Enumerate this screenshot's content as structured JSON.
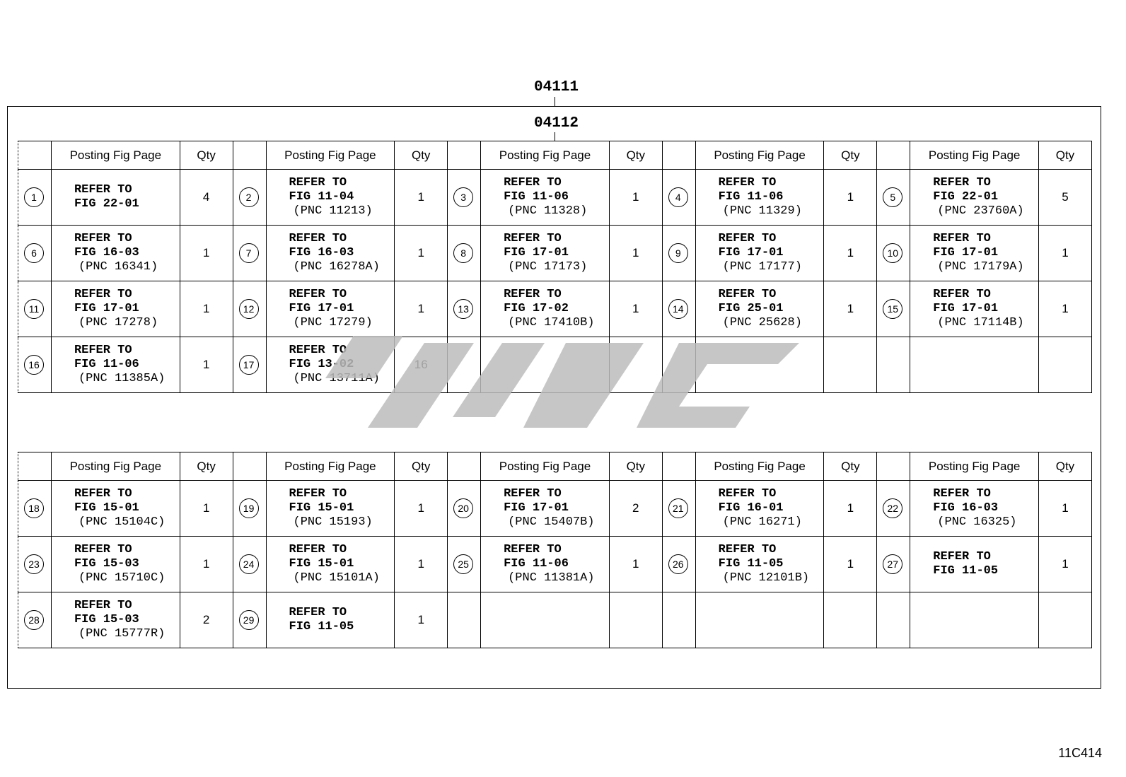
{
  "labels": {
    "top": "04111",
    "inner": "04112"
  },
  "footer_code": "11C414",
  "watermark_text": "",
  "headers": {
    "posting": "Posting Fig Page",
    "qty": "Qty"
  },
  "tables": [
    {
      "rows": [
        [
          {
            "no": "1",
            "lines": [
              "REFER TO",
              "FIG 22-01"
            ],
            "qty": "4"
          },
          {
            "no": "2",
            "lines": [
              "REFER TO",
              "FIG 11-04",
              "(PNC 11213)"
            ],
            "qty": "1"
          },
          {
            "no": "3",
            "lines": [
              "REFER TO",
              "FIG 11-06",
              "(PNC 11328)"
            ],
            "qty": "1"
          },
          {
            "no": "4",
            "lines": [
              "REFER TO",
              "FIG 11-06",
              "(PNC 11329)"
            ],
            "qty": "1"
          },
          {
            "no": "5",
            "lines": [
              "REFER TO",
              "FIG 22-01",
              "(PNC 23760A)"
            ],
            "qty": "5"
          }
        ],
        [
          {
            "no": "6",
            "lines": [
              "REFER TO",
              "FIG 16-03",
              "(PNC 16341)"
            ],
            "qty": "1"
          },
          {
            "no": "7",
            "lines": [
              "REFER TO",
              "FIG 16-03",
              "(PNC 16278A)"
            ],
            "qty": "1"
          },
          {
            "no": "8",
            "lines": [
              "REFER TO",
              "FIG 17-01",
              "(PNC 17173)"
            ],
            "qty": "1"
          },
          {
            "no": "9",
            "lines": [
              "REFER TO",
              "FIG 17-01",
              "(PNC 17177)"
            ],
            "qty": "1"
          },
          {
            "no": "10",
            "lines": [
              "REFER TO",
              "FIG 17-01",
              "(PNC 17179A)"
            ],
            "qty": "1"
          }
        ],
        [
          {
            "no": "11",
            "lines": [
              "REFER TO",
              "FIG 17-01",
              "(PNC 17278)"
            ],
            "qty": "1"
          },
          {
            "no": "12",
            "lines": [
              "REFER TO",
              "FIG 17-01",
              "(PNC 17279)"
            ],
            "qty": "1"
          },
          {
            "no": "13",
            "lines": [
              "REFER TO",
              "FIG 17-02",
              "(PNC 17410B)"
            ],
            "qty": "1"
          },
          {
            "no": "14",
            "lines": [
              "REFER TO",
              "FIG 25-01",
              "(PNC 25628)"
            ],
            "qty": "1"
          },
          {
            "no": "15",
            "lines": [
              "REFER TO",
              "FIG 17-01",
              "(PNC 17114B)"
            ],
            "qty": "1"
          }
        ],
        [
          {
            "no": "16",
            "lines": [
              "REFER TO",
              "FIG 11-06",
              "(PNC 11385A)"
            ],
            "qty": "1"
          },
          {
            "no": "17",
            "lines": [
              "REFER TO",
              "FIG 13-02",
              "(PNC 13711A)"
            ],
            "qty": "16"
          },
          null,
          null,
          null
        ]
      ]
    },
    {
      "rows": [
        [
          {
            "no": "18",
            "lines": [
              "REFER TO",
              "FIG 15-01",
              "(PNC 15104C)"
            ],
            "qty": "1"
          },
          {
            "no": "19",
            "lines": [
              "REFER TO",
              "FIG 15-01",
              "(PNC 15193)"
            ],
            "qty": "1"
          },
          {
            "no": "20",
            "lines": [
              "REFER TO",
              "FIG 17-01",
              "(PNC 15407B)"
            ],
            "qty": "2"
          },
          {
            "no": "21",
            "lines": [
              "REFER TO",
              "FIG 16-01",
              "(PNC 16271)"
            ],
            "qty": "1"
          },
          {
            "no": "22",
            "lines": [
              "REFER TO",
              "FIG 16-03",
              "(PNC 16325)"
            ],
            "qty": "1"
          }
        ],
        [
          {
            "no": "23",
            "lines": [
              "REFER TO",
              "FIG 15-03",
              "(PNC 15710C)"
            ],
            "qty": "1"
          },
          {
            "no": "24",
            "lines": [
              "REFER TO",
              "FIG 15-01",
              "(PNC 15101A)"
            ],
            "qty": "1"
          },
          {
            "no": "25",
            "lines": [
              "REFER TO",
              "FIG 11-06",
              "(PNC 11381A)"
            ],
            "qty": "1"
          },
          {
            "no": "26",
            "lines": [
              "REFER TO",
              "FIG 11-05",
              "(PNC 12101B)"
            ],
            "qty": "1"
          },
          {
            "no": "27",
            "lines": [
              "REFER TO",
              "FIG 11-05"
            ],
            "qty": "1"
          }
        ],
        [
          {
            "no": "28",
            "lines": [
              "REFER TO",
              "FIG 15-03",
              "(PNC 15777R)"
            ],
            "qty": "2"
          },
          {
            "no": "29",
            "lines": [
              "REFER TO",
              "FIG 11-05"
            ],
            "qty": "1"
          },
          null,
          null,
          null
        ]
      ]
    }
  ]
}
